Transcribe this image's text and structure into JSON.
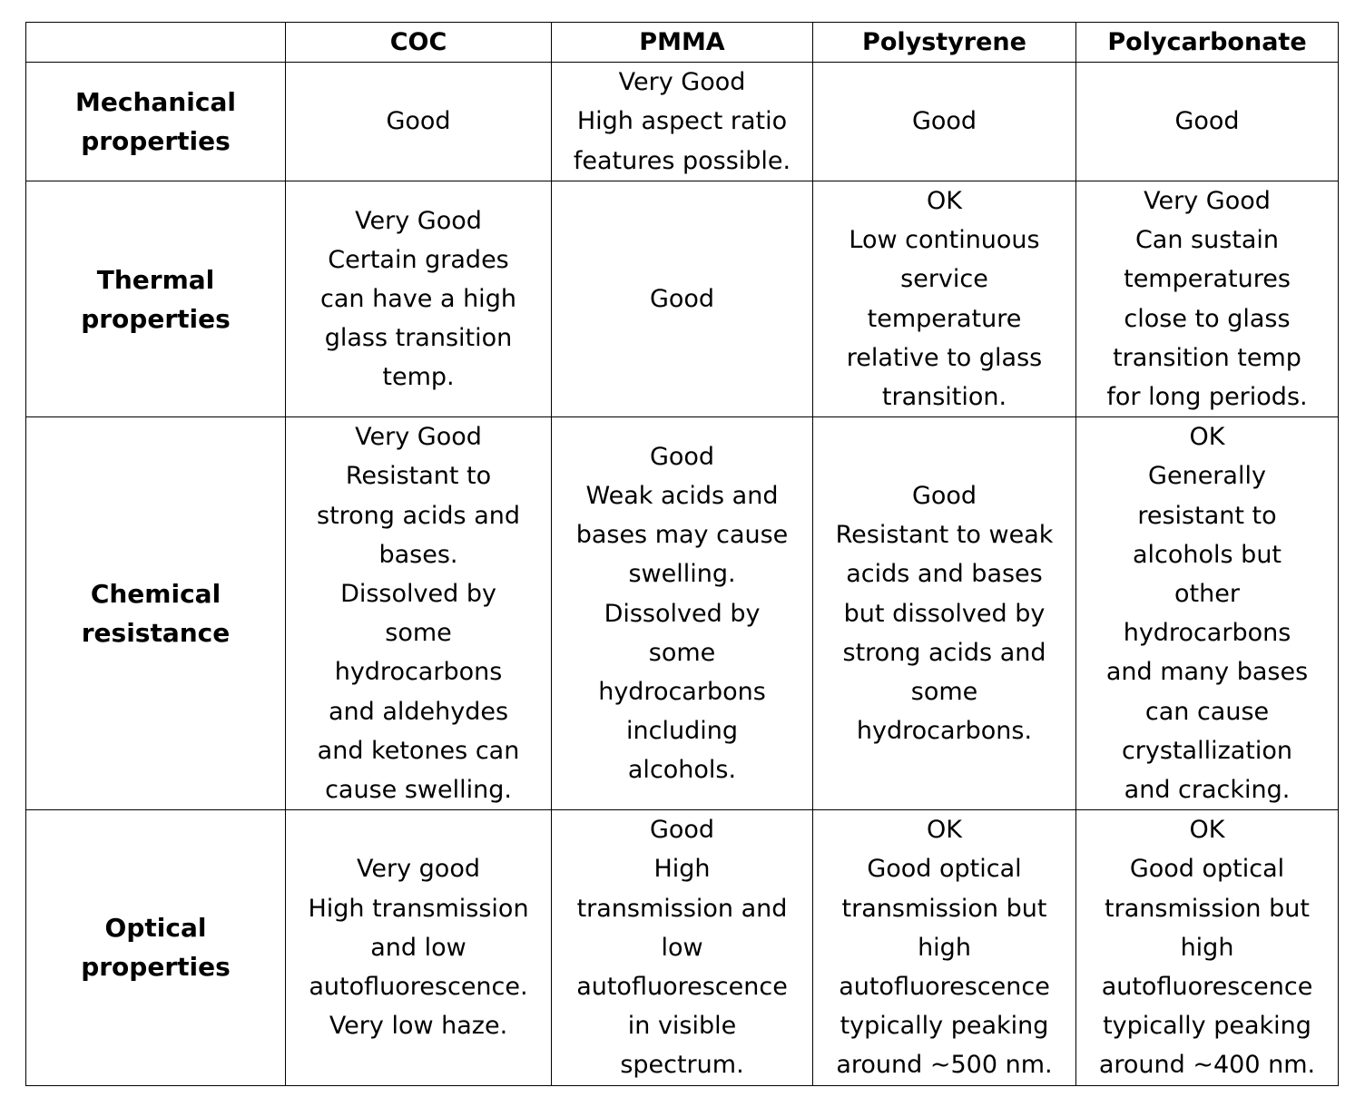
{
  "table": {
    "corner": "",
    "columns": [
      "COC",
      "PMMA",
      "Polystyrene",
      "Polycarbonate"
    ],
    "rows": [
      {
        "label": "Mechanical\nproperties",
        "cells": [
          "Good",
          "Very Good\nHigh aspect ratio\nfeatures possible.",
          "Good",
          "Good"
        ]
      },
      {
        "label": "Thermal\nproperties",
        "cells": [
          "Very Good\nCertain grades\ncan have a high\nglass transition\ntemp.",
          "Good",
          "OK\nLow continuous\nservice\ntemperature\nrelative to glass\ntransition.",
          "Very Good\nCan sustain\ntemperatures\nclose to glass\ntransition temp\nfor long periods."
        ]
      },
      {
        "label": "Chemical\nresistance",
        "cells": [
          "Very Good\nResistant to\nstrong acids and\nbases.\nDissolved by\nsome\nhydrocarbons\nand aldehydes\nand ketones can\ncause swelling.",
          "Good\nWeak acids and\nbases may cause\nswelling.\nDissolved by\nsome\nhydrocarbons\nincluding\nalcohols.",
          "Good\nResistant to weak\nacids and bases\nbut dissolved by\nstrong acids and\nsome\nhydrocarbons.",
          "OK\nGenerally\nresistant to\nalcohols but\nother\nhydrocarbons\nand many bases\ncan cause\ncrystallization\nand cracking."
        ]
      },
      {
        "label": "Optical\nproperties",
        "cells": [
          "Very good\nHigh transmission\nand low\nautofluorescence.\nVery low haze.",
          "Good\nHigh\ntransmission and\nlow\nautofluorescence\nin visible\nspectrum.",
          "OK\nGood optical\ntransmission but\nhigh\nautofluorescence\ntypically peaking\naround ~500 nm.",
          "OK\nGood optical\ntransmission but\nhigh\nautofluorescence\ntypically peaking\naround ~400 nm."
        ]
      }
    ]
  }
}
